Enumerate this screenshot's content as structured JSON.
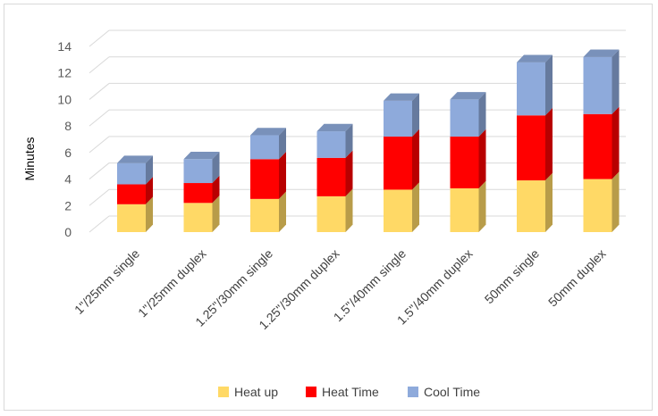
{
  "chart_data": {
    "type": "bar",
    "stacked": true,
    "three_d": true,
    "title": "",
    "xlabel": "",
    "ylabel": "Minutes",
    "ylim": [
      0,
      14
    ],
    "yticks": [
      0,
      2,
      4,
      6,
      8,
      10,
      12,
      14
    ],
    "grid": true,
    "legend_position": "bottom",
    "categories": [
      "1\"/25mm single",
      "1\"/25mm duplex",
      "1.25\"/30mm single",
      "1.25\"/30mm duplex",
      "1.5\"/40mm single",
      "1.5\"/40mm  duplex",
      "50mm single",
      "50mm duplex"
    ],
    "series": [
      {
        "name": "Heat up",
        "color": "#FFD966",
        "values": [
          2.1,
          2.2,
          2.5,
          2.7,
          3.2,
          3.3,
          3.9,
          4.0
        ]
      },
      {
        "name": "Heat Time",
        "color": "#FF0000",
        "values": [
          1.5,
          1.5,
          3.0,
          2.9,
          4.0,
          3.9,
          4.9,
          4.9
        ]
      },
      {
        "name": "Cool Time",
        "color": "#8EAADB",
        "values": [
          1.6,
          1.8,
          1.8,
          2.0,
          2.7,
          2.8,
          4.0,
          4.3
        ]
      }
    ]
  }
}
